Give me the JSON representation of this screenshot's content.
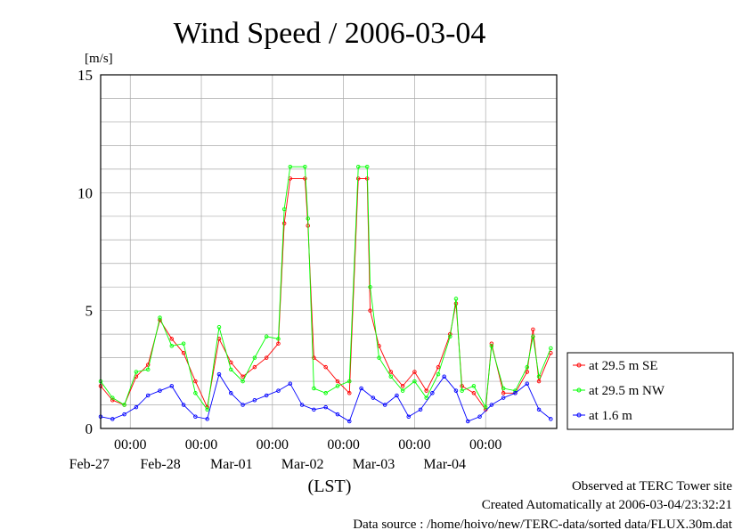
{
  "chart_data": {
    "type": "line",
    "title": "Wind Speed / 2006-03-04",
    "ylabel": "[m/s]",
    "xlabel": "(LST)",
    "ylim": [
      0,
      15
    ],
    "yticks": [
      0,
      5,
      10,
      15
    ],
    "xlim": [
      "2006-02-26T14:00",
      "2006-03-05T00:00"
    ],
    "xtick_labels": [
      "00:00",
      "00:00",
      "00:00",
      "00:00",
      "00:00",
      "00:00"
    ],
    "x_date_labels": [
      "Feb-27",
      "Feb-28",
      "Mar-01",
      "Mar-02",
      "Mar-03",
      "Mar-04"
    ],
    "grid": true,
    "legend_position": "right",
    "series": [
      {
        "name": "at 29.5 m SE",
        "color": "#ff0000",
        "points": [
          [
            "2006-02-26T14:00",
            1.8
          ],
          [
            "2006-02-26T18:00",
            1.2
          ],
          [
            "2006-02-26T22:00",
            1.0
          ],
          [
            "2006-02-27T02:00",
            2.2
          ],
          [
            "2006-02-27T06:00",
            2.7
          ],
          [
            "2006-02-27T10:00",
            4.6
          ],
          [
            "2006-02-27T14:00",
            3.8
          ],
          [
            "2006-02-27T18:00",
            3.2
          ],
          [
            "2006-02-27T22:00",
            2.0
          ],
          [
            "2006-02-28T02:00",
            0.9
          ],
          [
            "2006-02-28T06:00",
            3.8
          ],
          [
            "2006-02-28T10:00",
            2.8
          ],
          [
            "2006-02-28T14:00",
            2.2
          ],
          [
            "2006-02-28T18:00",
            2.6
          ],
          [
            "2006-02-28T22:00",
            3.0
          ],
          [
            "2006-03-01T02:00",
            3.6
          ],
          [
            "2006-03-01T04:00",
            8.7
          ],
          [
            "2006-03-01T06:00",
            10.6
          ],
          [
            "2006-03-01T11:00",
            10.6
          ],
          [
            "2006-03-01T12:00",
            8.6
          ],
          [
            "2006-03-01T14:00",
            3.0
          ],
          [
            "2006-03-01T18:00",
            2.6
          ],
          [
            "2006-03-01T22:00",
            2.0
          ],
          [
            "2006-03-02T02:00",
            1.5
          ],
          [
            "2006-03-02T05:00",
            10.6
          ],
          [
            "2006-03-02T08:00",
            10.6
          ],
          [
            "2006-03-02T09:00",
            5.0
          ],
          [
            "2006-03-02T12:00",
            3.5
          ],
          [
            "2006-03-02T16:00",
            2.4
          ],
          [
            "2006-03-02T20:00",
            1.8
          ],
          [
            "2006-03-03T00:00",
            2.4
          ],
          [
            "2006-03-03T04:00",
            1.6
          ],
          [
            "2006-03-03T08:00",
            2.6
          ],
          [
            "2006-03-03T12:00",
            4.0
          ],
          [
            "2006-03-03T14:00",
            5.3
          ],
          [
            "2006-03-03T16:00",
            1.8
          ],
          [
            "2006-03-03T20:00",
            1.5
          ],
          [
            "2006-03-04T00:00",
            0.8
          ],
          [
            "2006-03-04T02:00",
            3.6
          ],
          [
            "2006-03-04T06:00",
            1.5
          ],
          [
            "2006-03-04T10:00",
            1.5
          ],
          [
            "2006-03-04T14:00",
            2.4
          ],
          [
            "2006-03-04T16:00",
            4.2
          ],
          [
            "2006-03-04T18:00",
            2.0
          ],
          [
            "2006-03-04T22:00",
            3.2
          ]
        ]
      },
      {
        "name": "at 29.5 m NW",
        "color": "#00ff00",
        "points": [
          [
            "2006-02-26T14:00",
            2.0
          ],
          [
            "2006-02-26T18:00",
            1.3
          ],
          [
            "2006-02-26T22:00",
            1.0
          ],
          [
            "2006-02-27T02:00",
            2.4
          ],
          [
            "2006-02-27T06:00",
            2.5
          ],
          [
            "2006-02-27T10:00",
            4.7
          ],
          [
            "2006-02-27T14:00",
            3.5
          ],
          [
            "2006-02-27T18:00",
            3.6
          ],
          [
            "2006-02-27T22:00",
            1.5
          ],
          [
            "2006-02-28T02:00",
            0.8
          ],
          [
            "2006-02-28T06:00",
            4.3
          ],
          [
            "2006-02-28T10:00",
            2.5
          ],
          [
            "2006-02-28T14:00",
            2.0
          ],
          [
            "2006-02-28T18:00",
            3.0
          ],
          [
            "2006-02-28T22:00",
            3.9
          ],
          [
            "2006-03-01T02:00",
            3.8
          ],
          [
            "2006-03-01T04:00",
            9.3
          ],
          [
            "2006-03-01T06:00",
            11.1
          ],
          [
            "2006-03-01T11:00",
            11.1
          ],
          [
            "2006-03-01T12:00",
            8.9
          ],
          [
            "2006-03-01T14:00",
            1.7
          ],
          [
            "2006-03-01T18:00",
            1.5
          ],
          [
            "2006-03-01T22:00",
            1.8
          ],
          [
            "2006-03-02T02:00",
            2.0
          ],
          [
            "2006-03-02T05:00",
            11.1
          ],
          [
            "2006-03-02T08:00",
            11.1
          ],
          [
            "2006-03-02T09:00",
            6.0
          ],
          [
            "2006-03-02T12:00",
            3.0
          ],
          [
            "2006-03-02T16:00",
            2.2
          ],
          [
            "2006-03-02T20:00",
            1.6
          ],
          [
            "2006-03-03T00:00",
            2.0
          ],
          [
            "2006-03-03T04:00",
            1.3
          ],
          [
            "2006-03-03T08:00",
            2.3
          ],
          [
            "2006-03-03T12:00",
            3.9
          ],
          [
            "2006-03-03T14:00",
            5.5
          ],
          [
            "2006-03-03T16:00",
            1.6
          ],
          [
            "2006-03-03T20:00",
            1.8
          ],
          [
            "2006-03-04T00:00",
            0.9
          ],
          [
            "2006-03-04T02:00",
            3.5
          ],
          [
            "2006-03-04T06:00",
            1.7
          ],
          [
            "2006-03-04T10:00",
            1.6
          ],
          [
            "2006-03-04T14:00",
            2.6
          ],
          [
            "2006-03-04T16:00",
            3.9
          ],
          [
            "2006-03-04T18:00",
            2.2
          ],
          [
            "2006-03-04T22:00",
            3.4
          ]
        ]
      },
      {
        "name": "at 1.6 m",
        "color": "#0000ff",
        "points": [
          [
            "2006-02-26T14:00",
            0.5
          ],
          [
            "2006-02-26T18:00",
            0.4
          ],
          [
            "2006-02-26T22:00",
            0.6
          ],
          [
            "2006-02-27T02:00",
            0.9
          ],
          [
            "2006-02-27T06:00",
            1.4
          ],
          [
            "2006-02-27T10:00",
            1.6
          ],
          [
            "2006-02-27T14:00",
            1.8
          ],
          [
            "2006-02-27T18:00",
            1.0
          ],
          [
            "2006-02-27T22:00",
            0.5
          ],
          [
            "2006-02-28T02:00",
            0.4
          ],
          [
            "2006-02-28T06:00",
            2.3
          ],
          [
            "2006-02-28T10:00",
            1.5
          ],
          [
            "2006-02-28T14:00",
            1.0
          ],
          [
            "2006-02-28T18:00",
            1.2
          ],
          [
            "2006-02-28T22:00",
            1.4
          ],
          [
            "2006-03-01T02:00",
            1.6
          ],
          [
            "2006-03-01T06:00",
            1.9
          ],
          [
            "2006-03-01T10:00",
            1.0
          ],
          [
            "2006-03-01T14:00",
            0.8
          ],
          [
            "2006-03-01T18:00",
            0.9
          ],
          [
            "2006-03-01T22:00",
            0.6
          ],
          [
            "2006-03-02T02:00",
            0.3
          ],
          [
            "2006-03-02T06:00",
            1.7
          ],
          [
            "2006-03-02T10:00",
            1.3
          ],
          [
            "2006-03-02T14:00",
            1.0
          ],
          [
            "2006-03-02T18:00",
            1.4
          ],
          [
            "2006-03-02T22:00",
            0.5
          ],
          [
            "2006-03-03T02:00",
            0.8
          ],
          [
            "2006-03-03T06:00",
            1.5
          ],
          [
            "2006-03-03T10:00",
            2.2
          ],
          [
            "2006-03-03T14:00",
            1.6
          ],
          [
            "2006-03-03T18:00",
            0.3
          ],
          [
            "2006-03-03T22:00",
            0.5
          ],
          [
            "2006-03-04T02:00",
            1.0
          ],
          [
            "2006-03-04T06:00",
            1.3
          ],
          [
            "2006-03-04T10:00",
            1.5
          ],
          [
            "2006-03-04T14:00",
            1.9
          ],
          [
            "2006-03-04T18:00",
            0.8
          ],
          [
            "2006-03-04T22:00",
            0.4
          ]
        ]
      }
    ]
  },
  "footer": {
    "line1": "Observed at TERC Tower site",
    "line2": "Created Automatically at 2006-03-04/23:32:21",
    "line3": "Data source : /home/hoivo/new/TERC-data/sorted data/FLUX.30m.dat"
  }
}
